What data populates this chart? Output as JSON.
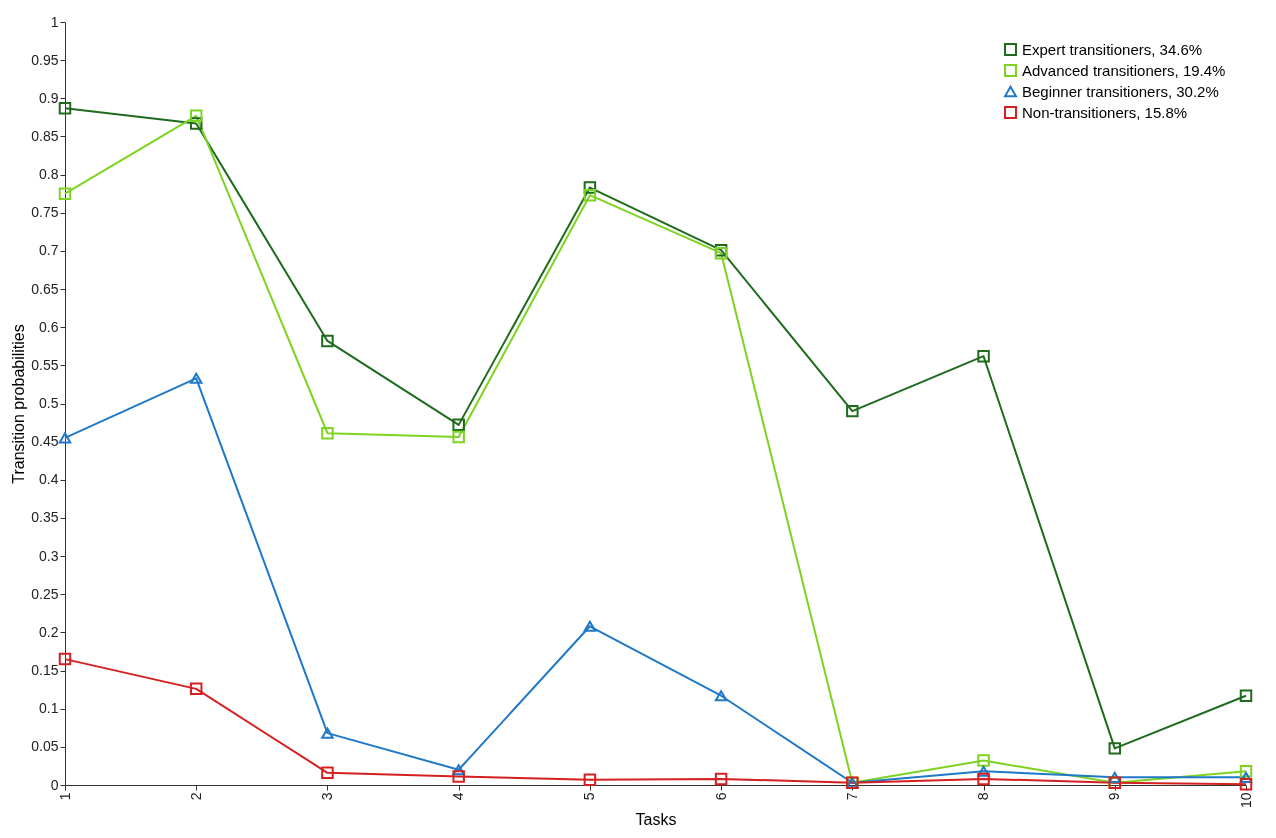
{
  "chart_data": {
    "type": "line",
    "xlabel": "Tasks",
    "ylabel": "Transition probabilities",
    "x": [
      1,
      2,
      3,
      4,
      5,
      6,
      7,
      8,
      9,
      10
    ],
    "xlim": [
      1,
      10
    ],
    "xticks": [
      1,
      2,
      3,
      4,
      5,
      6,
      7,
      8,
      9,
      10
    ],
    "ylim": [
      0,
      1
    ],
    "yticks": [
      0,
      0.05,
      0.1,
      0.15,
      0.2,
      0.25,
      0.3,
      0.35,
      0.4,
      0.45,
      0.5,
      0.55,
      0.6,
      0.65,
      0.7,
      0.75,
      0.8,
      0.85,
      0.9,
      0.95,
      1
    ],
    "grid": false,
    "legend": "top right",
    "line_style": "solid",
    "series": [
      {
        "name": "Expert transitioners, 34.6%",
        "color": "#1e6b1e",
        "marker": "square",
        "values": [
          0.887,
          0.867,
          0.582,
          0.472,
          0.783,
          0.701,
          0.49,
          0.562,
          0.048,
          0.117
        ]
      },
      {
        "name": "Advanced transitioners, 19.4%",
        "color": "#7ed321",
        "marker": "square",
        "values": [
          0.775,
          0.877,
          0.461,
          0.456,
          0.773,
          0.697,
          0.003,
          0.032,
          0.003,
          0.018
        ]
      },
      {
        "name": "Beginner transitioners, 30.2%",
        "color": "#1f78c8",
        "marker": "triangle",
        "values": [
          0.455,
          0.533,
          0.068,
          0.02,
          0.208,
          0.117,
          0.003,
          0.018,
          0.01,
          0.01
        ]
      },
      {
        "name": "Non-transitioners, 15.8%",
        "color": "#d42020",
        "marker": "square",
        "values": [
          0.165,
          0.126,
          0.016,
          0.011,
          0.007,
          0.008,
          0.003,
          0.008,
          0.003,
          0.001
        ]
      }
    ]
  }
}
